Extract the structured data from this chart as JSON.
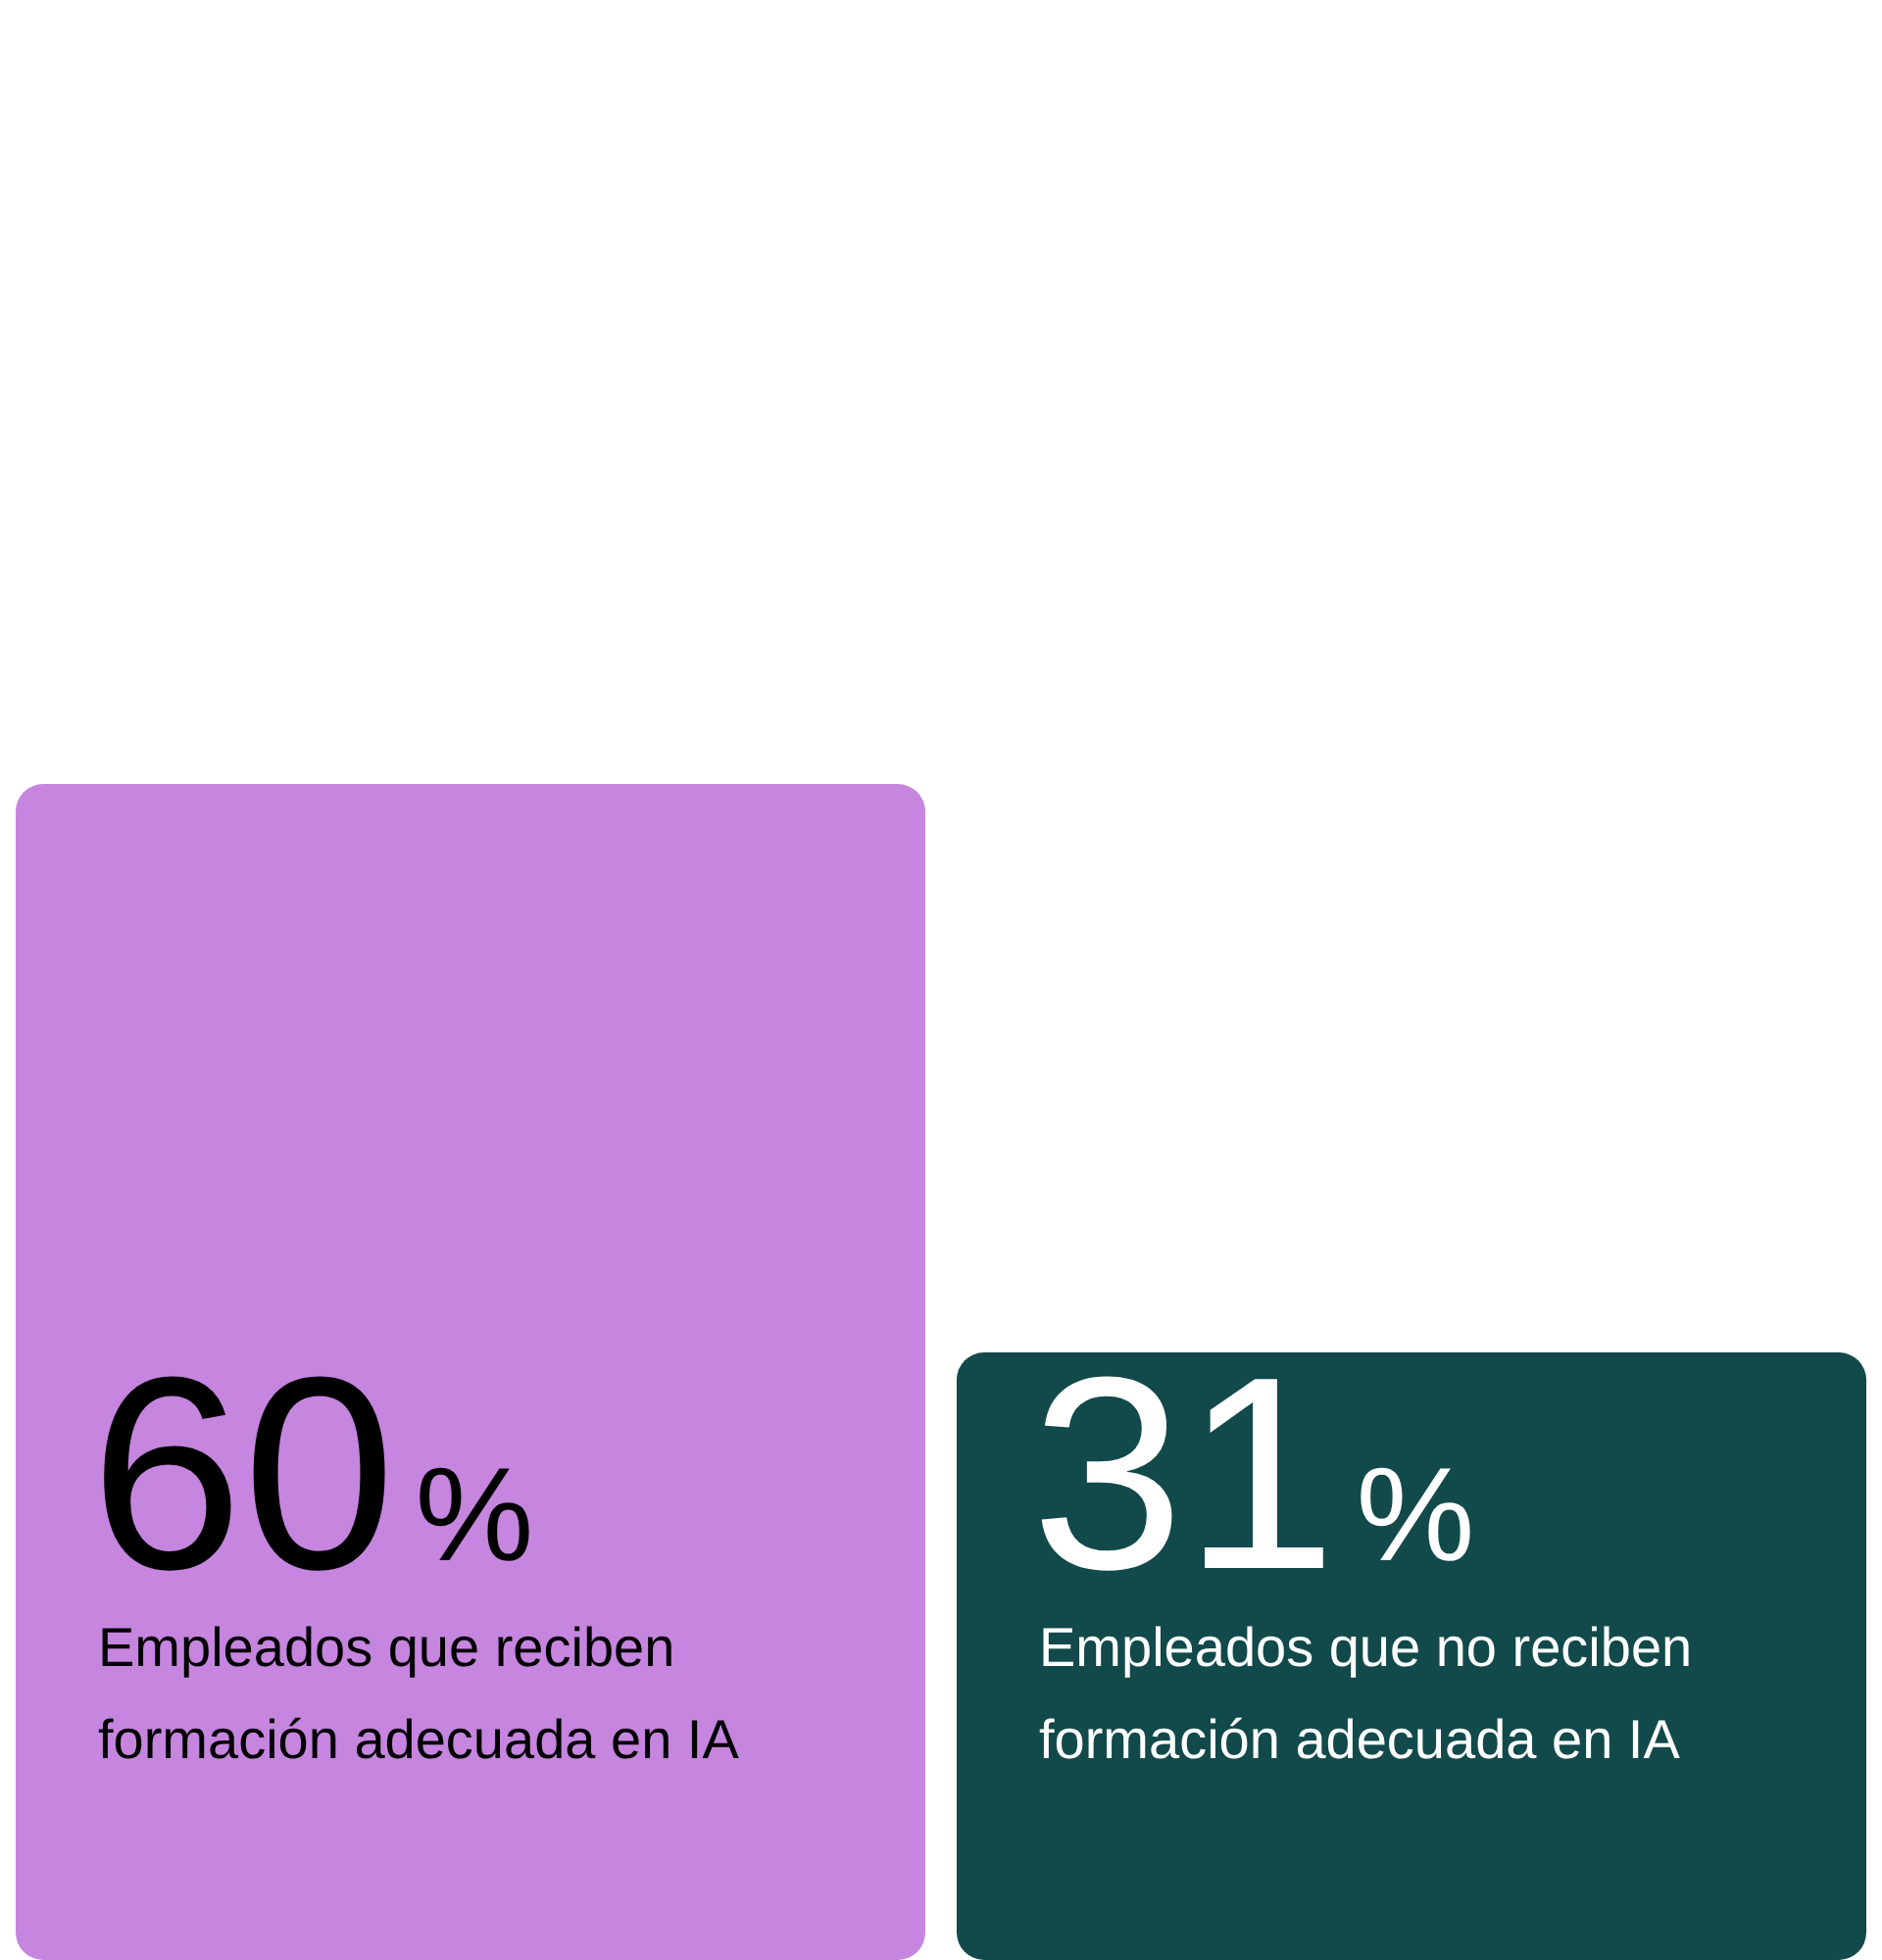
{
  "chart_data": {
    "type": "bar",
    "categories": [
      "Empleados que reciben formación adecuada en IA",
      "Empleados que no reciben formación adecuada en IA"
    ],
    "values": [
      60,
      31
    ],
    "colors": [
      "#c685df",
      "#12494a"
    ],
    "value_labels": [
      "60%",
      "31%"
    ],
    "legend": false
  }
}
